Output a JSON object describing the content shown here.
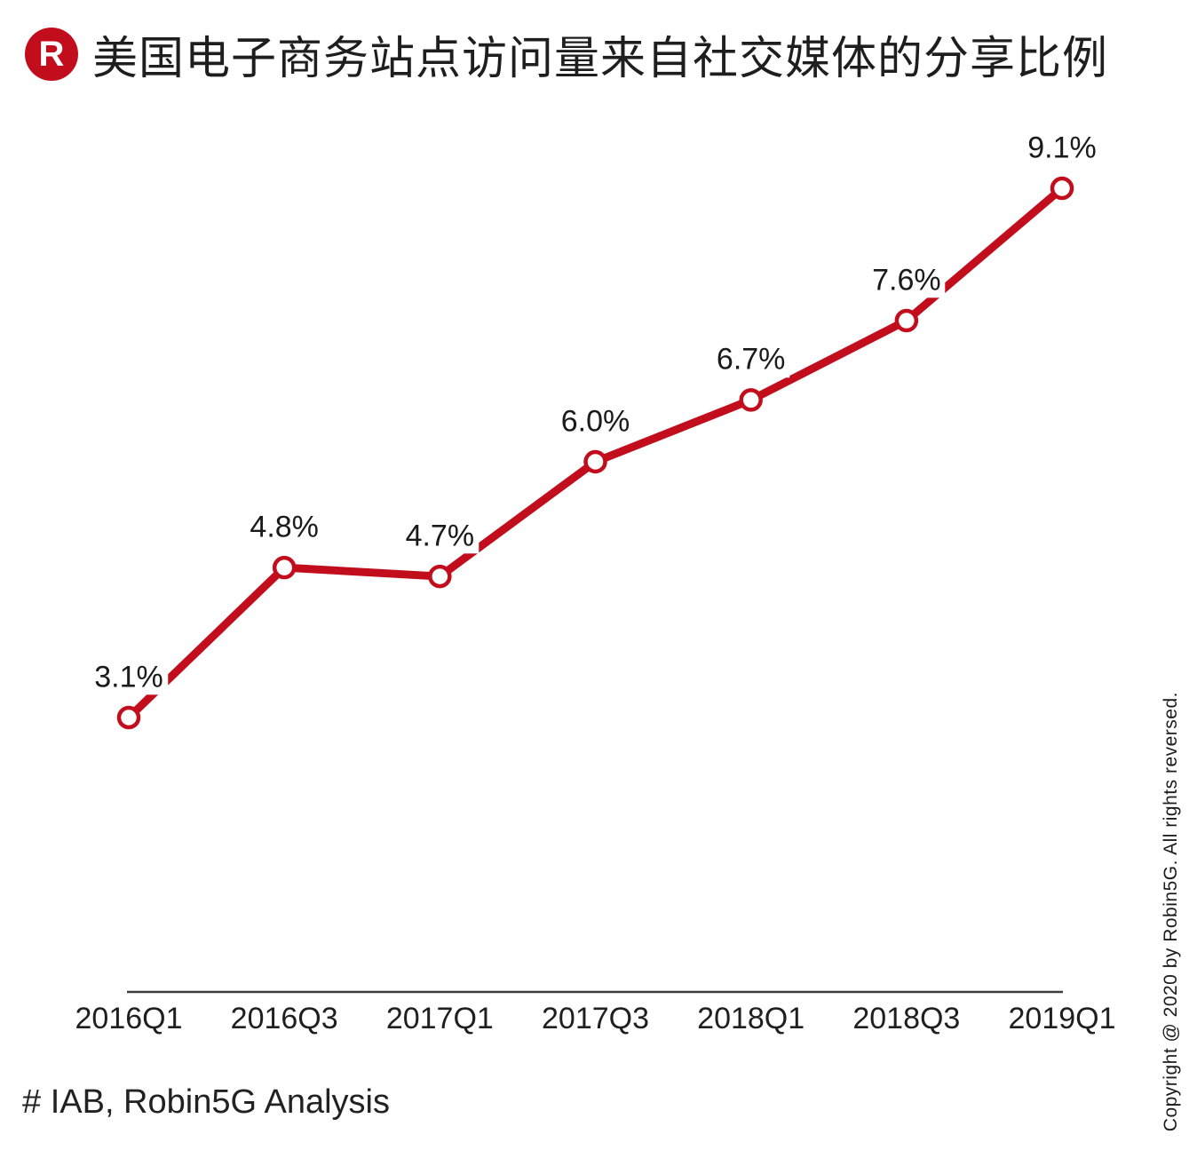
{
  "header": {
    "logo_letter": "R",
    "title": "美国电子商务站点访问量来自社交媒体的分享比例"
  },
  "chart_data": {
    "type": "line",
    "title": "美国电子商务站点访问量来自社交媒体的分享比例",
    "categories": [
      "2016Q1",
      "2016Q3",
      "2017Q1",
      "2017Q3",
      "2018Q1",
      "2018Q3",
      "2019Q1"
    ],
    "values": [
      3.1,
      4.8,
      4.7,
      6.0,
      6.7,
      7.6,
      9.1
    ],
    "point_labels": [
      "3.1%",
      "4.8%",
      "4.7%",
      "6.0%",
      "6.7%",
      "7.6%",
      "9.1%"
    ],
    "unit": "%",
    "xlabel": "",
    "ylabel": "",
    "ylim": [
      2.5,
      9.6
    ],
    "grid": false,
    "legend": "none",
    "marker": "open-circle",
    "line_color": "#c20e1c",
    "marker_fill": "#ffffff",
    "axis_color": "#3d3d3d"
  },
  "footer": {
    "source": "# IAB, Robin5G Analysis"
  },
  "copyright": "Copyright @ 2020 by Robin5G. All rights reversed.",
  "colors": {
    "accent": "#c20e1c",
    "text": "#1e1e1e",
    "axis": "#3d3d3d",
    "background": "#ffffff"
  }
}
